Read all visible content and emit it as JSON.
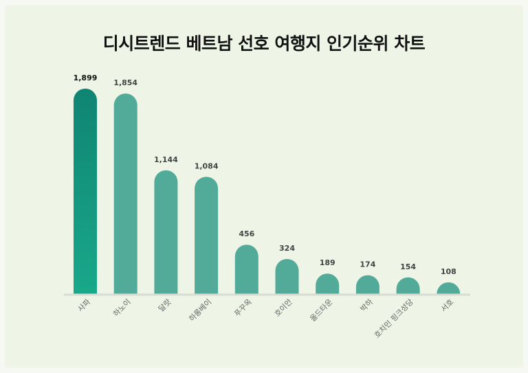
{
  "chart_data": {
    "type": "bar",
    "title": "디시트렌드 베트남 선호 여행지 인기순위 차트",
    "categories": [
      "사파",
      "하노이",
      "달랏",
      "하롱베이",
      "푸꾸옥",
      "호이안",
      "올드타운",
      "박하",
      "호치민 핑크성당",
      "서호"
    ],
    "values": [
      1899,
      1854,
      1144,
      1084,
      456,
      324,
      189,
      174,
      154,
      108
    ],
    "value_labels": [
      "1,899",
      "1,854",
      "1,144",
      "1,084",
      "456",
      "324",
      "189",
      "174",
      "154",
      "108"
    ],
    "ylim": [
      0,
      2000
    ],
    "grid": false,
    "legend": "none"
  },
  "colors": {
    "background": "#eef5e6",
    "bar": "#52ab98",
    "bar_top_gradient_start": "#0f8472",
    "bar_top_gradient_end": "#19a88a",
    "baseline": "#d7ddd2"
  }
}
